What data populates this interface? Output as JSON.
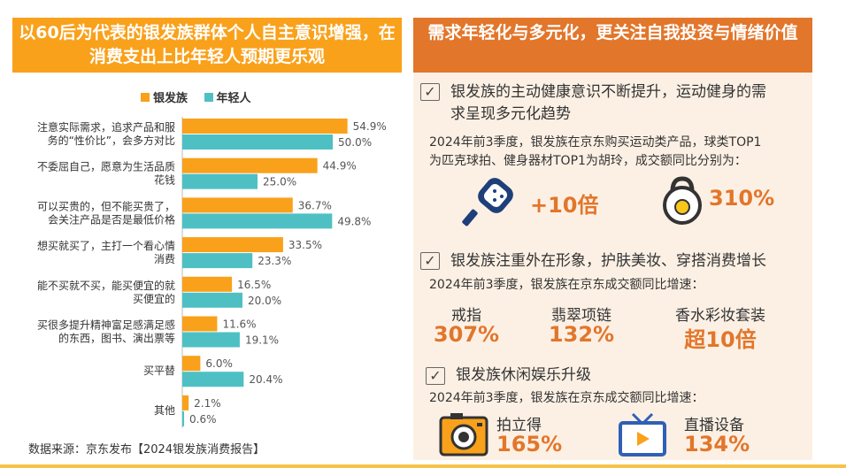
{
  "left": {
    "title": "以60后为代表的银发族群体个人自主意识增强，在消费支出上比年轻人预期更乐观",
    "source": "数据来源：京东发布【2024银发族消费报告】"
  },
  "colors": {
    "silver": "#f9a11b",
    "young": "#4ec0c4",
    "accent": "#e2762b"
  },
  "chart_data": {
    "type": "bar",
    "orientation": "horizontal",
    "categories": [
      [
        "注意实际需求，追求产品和服",
        "务的“性价比”，会多方对比"
      ],
      [
        "不委屈自己，愿意为生活品质",
        "花钱"
      ],
      [
        "可以买贵的，但不能买贵了，",
        "会关注产品是否是最低价格"
      ],
      [
        "想买就买了，主打一个看心情",
        "消费"
      ],
      [
        "能不买就不买，能买便宜的就",
        "买便宜的"
      ],
      [
        "买很多提升精神富足感满足感",
        "的东西，图书、演出票等"
      ],
      [
        "买平替"
      ],
      [
        "其他"
      ]
    ],
    "series": [
      {
        "name": "银发族",
        "values": [
          54.9,
          44.9,
          36.7,
          33.5,
          16.5,
          11.6,
          6.0,
          2.1
        ],
        "labels": [
          "54.9%",
          "44.9%",
          "36.7%",
          "33.5%",
          "16.5%",
          "11.6%",
          "6.0%",
          "2.1%"
        ]
      },
      {
        "name": "年轻人",
        "values": [
          50.0,
          25.0,
          49.8,
          23.3,
          20.0,
          19.1,
          20.4,
          0.6
        ],
        "labels": [
          "50.0%",
          "25.0%",
          "49.8%",
          "23.3%",
          "20.0%",
          "19.1%",
          "20.4%",
          "0.6%"
        ]
      }
    ],
    "xlim": [
      0,
      60
    ],
    "legend": "top",
    "grid": false
  },
  "right": {
    "title": "需求年轻化与多元化，更关注自我投资与情绪价值",
    "check_glyph": "✓",
    "s1": {
      "heading": [
        "银发族的主动健康意识不断提升，运动健身的需",
        "求呈现多元化趋势"
      ],
      "desc": [
        "2024年前3季度，银发族在京东购买运动类产品，球类TOP1",
        "为匹克球拍、健身器材TOP1为胡玲，成交额同比分别为："
      ],
      "stat1": "+10倍",
      "stat2": "310%",
      "icon1": "pickleball-paddle-icon",
      "icon2": "kettlebell-icon"
    },
    "s2": {
      "heading": "银发族注重外在形象，护肤美妆、穿搭消费增长",
      "desc": "2024年前3季度，银发族在京东成交额同比增速：",
      "items": [
        {
          "label": "戒指",
          "value": "307%"
        },
        {
          "label": "翡翠项链",
          "value": "132%"
        },
        {
          "label": "香水彩妆套装",
          "value": "超10倍"
        }
      ]
    },
    "s3": {
      "heading": "银发族休闲娱乐升级",
      "desc": "2024年前3季度，银发族在京东成交额同比增速：",
      "items": [
        {
          "label": "拍立得",
          "value": "165%",
          "icon": "instant-camera-icon"
        },
        {
          "label": "直播设备",
          "value": "134%",
          "icon": "tv-screen-icon"
        }
      ]
    }
  }
}
